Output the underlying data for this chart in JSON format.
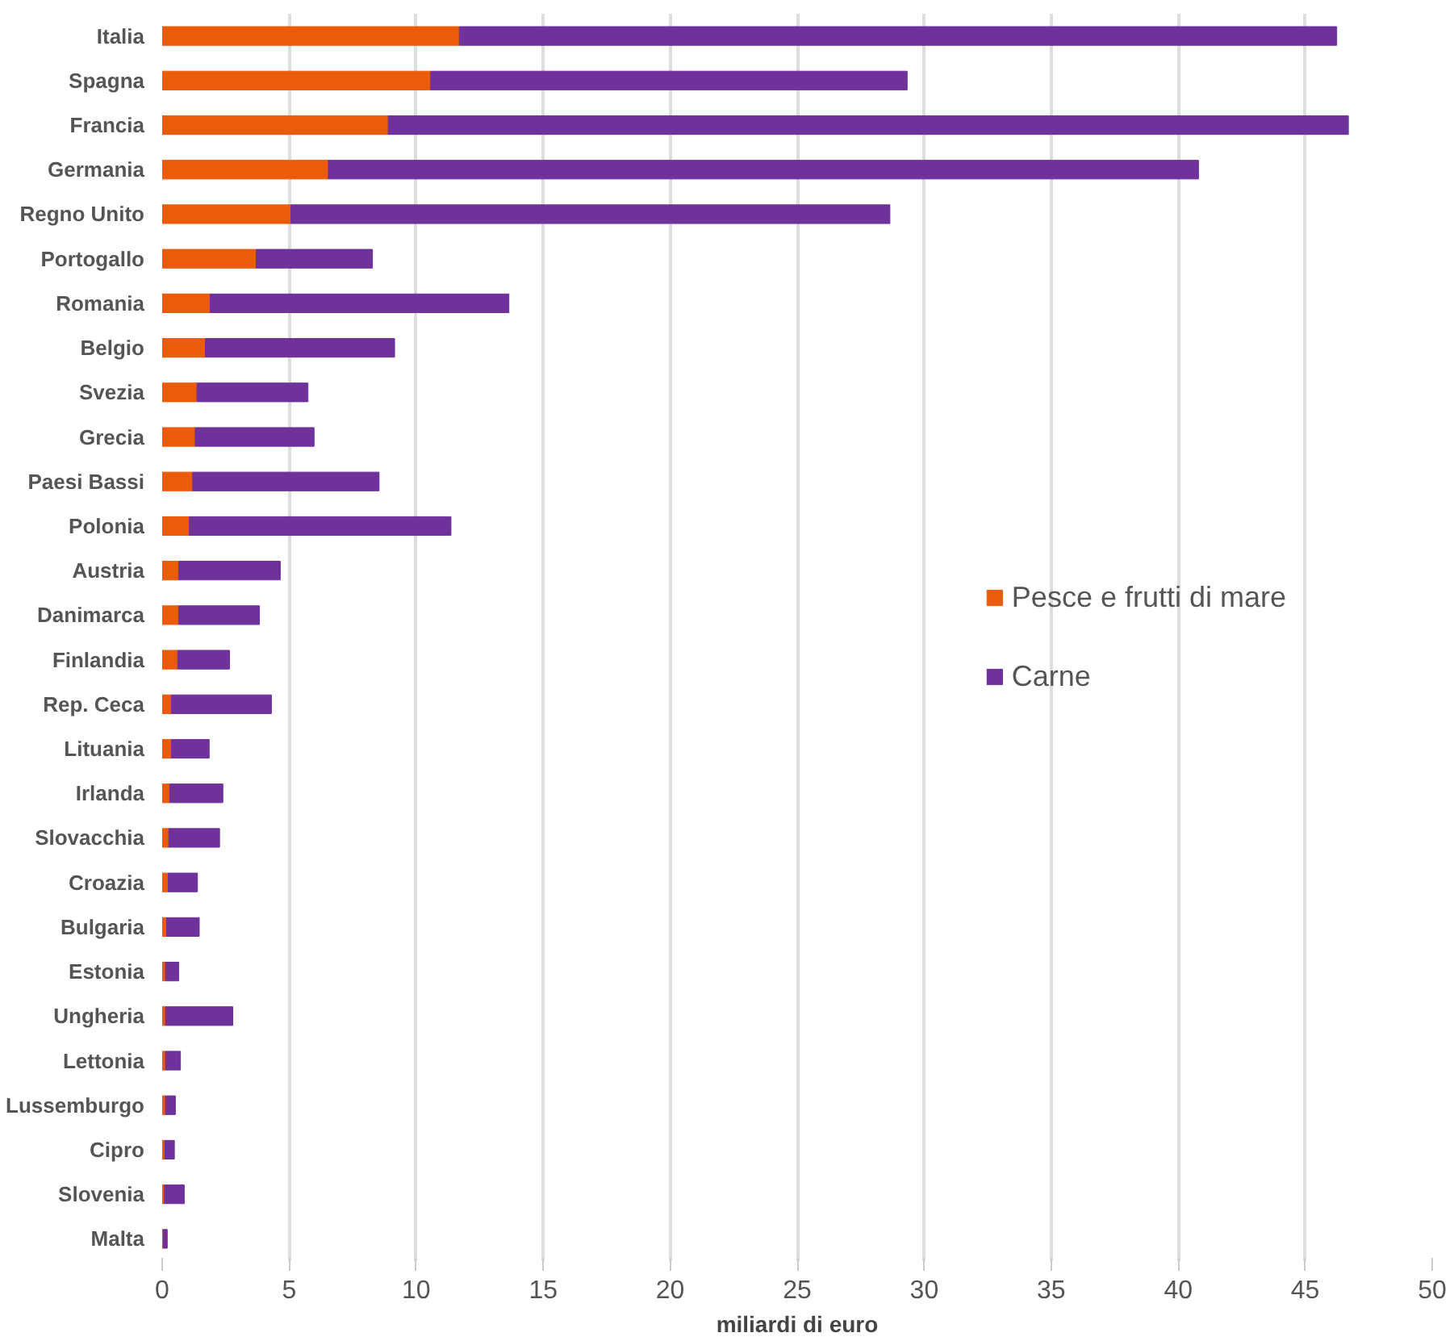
{
  "chart_data": {
    "type": "bar",
    "orientation": "horizontal",
    "stacked": true,
    "categories": [
      "Italia",
      "Spagna",
      "Francia",
      "Germania",
      "Regno Unito",
      "Portogallo",
      "Romania",
      "Belgio",
      "Svezia",
      "Grecia",
      "Paesi Bassi",
      "Polonia",
      "Austria",
      "Danimarca",
      "Finlandia",
      "Rep. Ceca",
      "Lituania",
      "Irlanda",
      "Slovacchia",
      "Croazia",
      "Bulgaria",
      "Estonia",
      "Ungheria",
      "Lettonia",
      "Lussemburgo",
      "Cipro",
      "Slovenia",
      "Malta"
    ],
    "series": [
      {
        "name": "Pesce e frutti di mare",
        "color": "#ea5b0c",
        "values": [
          11.7,
          10.57,
          8.9,
          6.54,
          5.07,
          3.7,
          1.89,
          1.7,
          1.37,
          1.3,
          1.2,
          1.07,
          0.65,
          0.65,
          0.61,
          0.37,
          0.37,
          0.3,
          0.26,
          0.24,
          0.17,
          0.13,
          0.13,
          0.13,
          0.13,
          0.11,
          0.09,
          0.04
        ]
      },
      {
        "name": "Carne",
        "color": "#6f319a",
        "values": [
          34.54,
          18.76,
          37.8,
          34.26,
          23.58,
          4.58,
          11.76,
          7.45,
          4.37,
          4.68,
          7.34,
          10.3,
          4.0,
          3.18,
          2.04,
          3.93,
          1.48,
          2.09,
          2.0,
          1.15,
          1.29,
          0.52,
          2.65,
          0.59,
          0.39,
          0.37,
          0.78,
          0.16
        ]
      }
    ],
    "xlabel": "miliardi di euro",
    "xlim": [
      0,
      50
    ],
    "xticks": [
      0,
      5,
      10,
      15,
      20,
      25,
      30,
      35,
      40,
      45,
      50
    ],
    "grid": "x",
    "legend": "right"
  }
}
